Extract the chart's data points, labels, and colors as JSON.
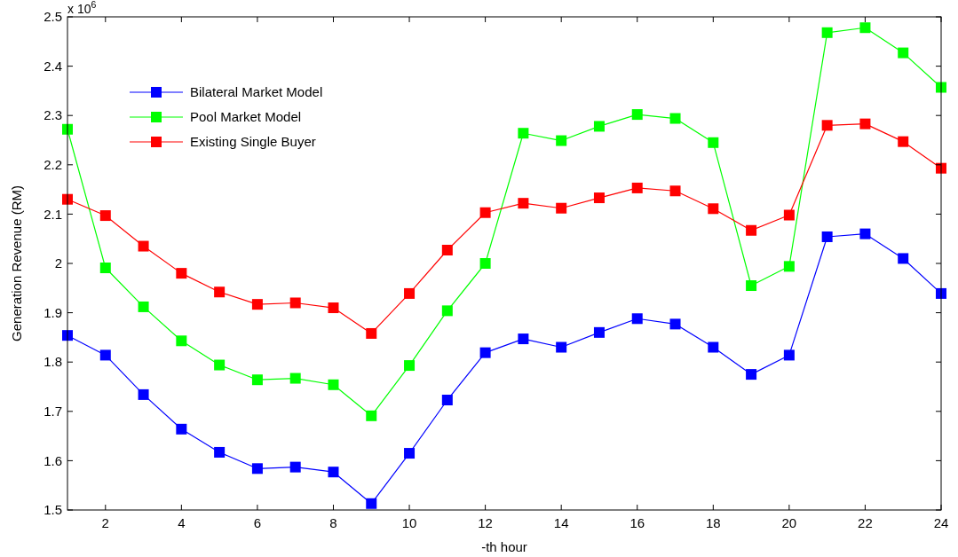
{
  "chart_data": {
    "type": "line",
    "xlabel": "-th hour",
    "ylabel": "Generation Revenue (RM)",
    "annotations": [
      "x 10$^{6}$"
    ],
    "x": [
      1,
      2,
      3,
      4,
      5,
      6,
      7,
      8,
      9,
      10,
      11,
      12,
      13,
      14,
      15,
      16,
      17,
      18,
      19,
      20,
      21,
      22,
      23,
      24
    ],
    "xlim": [
      1,
      24
    ],
    "xticks": [
      2,
      4,
      6,
      8,
      10,
      12,
      14,
      16,
      18,
      20,
      22,
      24
    ],
    "ylim": [
      1.5,
      2.5
    ],
    "yticks": [
      1.5,
      1.6,
      1.7,
      1.8,
      1.9,
      2,
      2.1,
      2.2,
      2.3,
      2.4,
      2.5
    ],
    "grid": false,
    "legend": "top left",
    "marker": "square",
    "line_style": "solid",
    "series": [
      {
        "name": "Bilateral Market Model",
        "color": "#0000ff",
        "values": [
          1.854,
          1.814,
          1.734,
          1.664,
          1.617,
          1.584,
          1.587,
          1.577,
          1.513,
          1.615,
          1.723,
          1.819,
          1.847,
          1.83,
          1.86,
          1.888,
          1.877,
          1.83,
          1.775,
          1.814,
          2.054,
          2.06,
          2.01,
          1.939
        ]
      },
      {
        "name": "Pool Market Model",
        "color": "#00ff00",
        "values": [
          2.272,
          1.991,
          1.912,
          1.843,
          1.794,
          1.764,
          1.767,
          1.754,
          1.691,
          1.793,
          1.904,
          2.0,
          2.264,
          2.249,
          2.278,
          2.302,
          2.294,
          2.245,
          1.955,
          1.994,
          2.468,
          2.478,
          2.427,
          2.357
        ]
      },
      {
        "name": "Existing Single Buyer",
        "color": "#ff0000",
        "values": [
          2.13,
          2.097,
          2.035,
          1.98,
          1.942,
          1.917,
          1.92,
          1.91,
          1.858,
          1.939,
          2.027,
          2.103,
          2.122,
          2.112,
          2.133,
          2.153,
          2.147,
          2.111,
          2.067,
          2.098,
          2.28,
          2.283,
          2.247,
          2.193
        ]
      }
    ]
  }
}
